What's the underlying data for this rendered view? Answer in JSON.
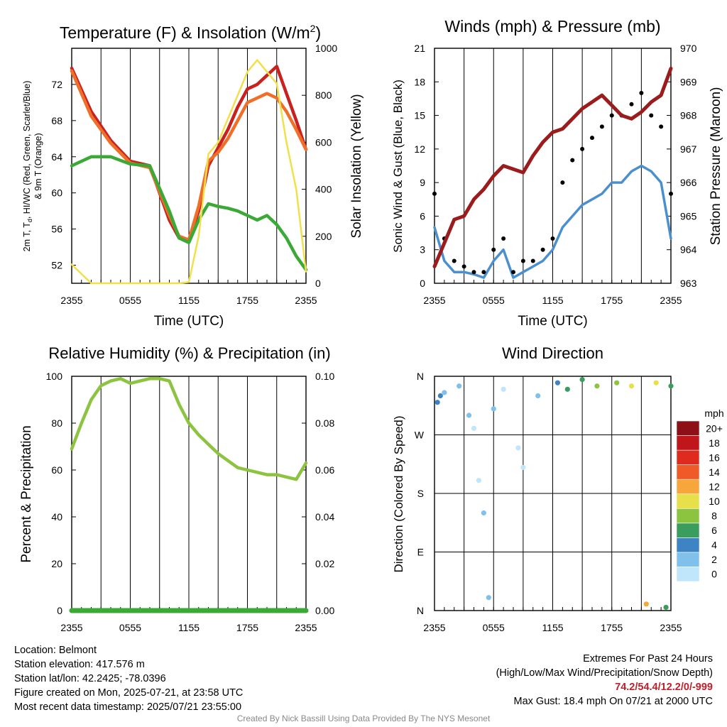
{
  "chart_data": [
    {
      "type": "line",
      "title": "Temperature (F) & Insolation (W/m²)",
      "title_main": "Temperature (F) & Insolation (W/m",
      "title_sup": "2",
      "title_end": ")",
      "xlabel": "Time (UTC)",
      "ylabel_lines": [
        "2m T, T",
        "d",
        ", HI/WC (Red, Green, Scarlet/Blue)",
        "& 9m T (Orange)"
      ],
      "ylabel_right": "Solar Insolation (Yellow)",
      "x_ticks": [
        "2355",
        "0555",
        "1155",
        "1755",
        "2355"
      ],
      "ylim": [
        50,
        76
      ],
      "yticks": [
        52,
        56,
        60,
        64,
        68,
        72
      ],
      "ylim_right": [
        0,
        1000
      ],
      "yticks_right": [
        0,
        200,
        400,
        600,
        800,
        1000
      ],
      "x_hours": [
        0,
        2,
        4,
        6,
        8,
        10,
        11,
        12,
        13,
        14,
        15,
        16,
        17,
        18,
        19,
        20,
        21,
        22,
        23,
        24
      ],
      "series": [
        {
          "color": "#c8211f",
          "values": [
            73.8,
            69,
            65.8,
            63.5,
            63,
            57,
            55,
            54.6,
            58,
            63,
            65,
            67,
            69.5,
            71.5,
            72,
            73,
            74,
            71,
            68,
            64.8
          ]
        },
        {
          "color": "#ef6f28",
          "values": [
            73.5,
            68.5,
            65.5,
            63.3,
            62.8,
            57.5,
            55.2,
            54.8,
            58.5,
            63.5,
            64.5,
            66,
            68,
            70,
            70.5,
            71,
            70.5,
            69,
            67,
            64.8
          ]
        },
        {
          "color": "#3aa935",
          "values": [
            63,
            64,
            64,
            63.2,
            63,
            58,
            55,
            54.5,
            57,
            58.8,
            58.5,
            58.3,
            58,
            57.5,
            57,
            57.5,
            56.5,
            55,
            53,
            51.5
          ]
        },
        {
          "color": "#f2e04a",
          "values": [
            80,
            0,
            0,
            0,
            0,
            0,
            0,
            5,
            200,
            550,
            600,
            700,
            800,
            900,
            950,
            900,
            850,
            600,
            400,
            50
          ]
        }
      ]
    },
    {
      "type": "line",
      "title": "Winds (mph) & Pressure (mb)",
      "xlabel": "Time (UTC)",
      "ylabel": "Sonic Wind & Gust (Blue, Black)",
      "ylabel_right": "Station Pressure (Maroon)",
      "x_ticks": [
        "2355",
        "0555",
        "1155",
        "1755",
        "2355"
      ],
      "ylim": [
        0,
        21
      ],
      "yticks": [
        0,
        3,
        6,
        9,
        12,
        15,
        18,
        21
      ],
      "ylim_right": [
        963,
        970
      ],
      "yticks_right": [
        963,
        964,
        965,
        966,
        967,
        968,
        969,
        970
      ],
      "x_hours": [
        0,
        1,
        2,
        3,
        4,
        5,
        6,
        7,
        8,
        9,
        10,
        11,
        12,
        13,
        14,
        15,
        16,
        17,
        18,
        19,
        20,
        21,
        22,
        23,
        24
      ],
      "series": [
        {
          "name": "Sonic Wind",
          "color": "#4a90cf",
          "values": [
            5,
            2,
            1,
            1,
            0.8,
            0.5,
            2,
            3,
            0.5,
            1,
            1.5,
            2,
            3,
            5,
            6,
            7,
            7.5,
            8,
            9,
            9,
            10,
            10.5,
            10,
            9,
            4
          ]
        },
        {
          "name": "Gust",
          "color": "#000000",
          "values": [
            8,
            4,
            2,
            1.5,
            1,
            1,
            3,
            4,
            1,
            2,
            2,
            3,
            4,
            9,
            11,
            12,
            13,
            14,
            15,
            15,
            16,
            17,
            15,
            14,
            8
          ]
        },
        {
          "name": "Station Pressure",
          "color": "#9b1c1c",
          "values": [
            963.5,
            964.2,
            964.9,
            965.0,
            965.5,
            965.8,
            966.2,
            966.5,
            966.4,
            966.3,
            966.8,
            967.2,
            967.5,
            967.6,
            967.9,
            968.2,
            968.4,
            968.6,
            968.3,
            968.0,
            967.9,
            968.1,
            968.4,
            968.6,
            969.4
          ]
        }
      ]
    },
    {
      "type": "line",
      "title": "Relative Humidity (%) & Precipitation (in)",
      "ylabel": "Percent & Precipitation",
      "x_ticks": [
        "2355",
        "0555",
        "1155",
        "1755",
        "2355"
      ],
      "ylim": [
        0,
        100
      ],
      "yticks": [
        0,
        20,
        40,
        60,
        80,
        100
      ],
      "ylim_right": [
        0,
        0.1
      ],
      "yticks_right": [
        "0.00",
        "0.02",
        "0.04",
        "0.06",
        "0.08",
        "0.10"
      ],
      "x_hours": [
        0,
        1,
        2,
        3,
        4,
        5,
        6,
        7,
        8,
        9,
        10,
        11,
        12,
        13,
        14,
        15,
        16,
        17,
        18,
        19,
        20,
        21,
        22,
        23,
        24
      ],
      "series": [
        {
          "name": "Relative Humidity",
          "color": "#8cc43f",
          "values": [
            69,
            80,
            90,
            96,
            98,
            99,
            97,
            98,
            99,
            99,
            98,
            88,
            80,
            75,
            71,
            67,
            64,
            61,
            60,
            59,
            58,
            58,
            57,
            56,
            63
          ]
        },
        {
          "name": "Precipitation",
          "color": "#3aa935",
          "values": [
            0,
            0,
            0,
            0,
            0,
            0,
            0,
            0,
            0,
            0,
            0,
            0,
            0,
            0,
            0,
            0,
            0,
            0,
            0,
            0,
            0,
            0,
            0,
            0,
            0
          ]
        }
      ]
    },
    {
      "type": "scatter",
      "title": "Wind Direction",
      "ylabel": "Direction (Colored By Speed)",
      "x_ticks": [
        "2355",
        "0555",
        "1155",
        "1755",
        "2355"
      ],
      "y_ticks": [
        "N",
        "E",
        "S",
        "W",
        "N"
      ],
      "ylim": [
        0,
        360
      ],
      "colorbar_title": "mph",
      "colorbar_labels": [
        "0",
        "2",
        "4",
        "6",
        "8",
        "10",
        "12",
        "14",
        "16",
        "18",
        "20+"
      ],
      "colorbar_colors": [
        "#bfe6fb",
        "#7fc1eb",
        "#3e84c4",
        "#3a9d5e",
        "#8cc43f",
        "#e8e04a",
        "#f7a63b",
        "#ef5a28",
        "#df2a1e",
        "#c0151a",
        "#8e1016"
      ],
      "points": [
        {
          "x": 0.3,
          "y": 320,
          "s": 4
        },
        {
          "x": 0.6,
          "y": 330,
          "s": 3
        },
        {
          "x": 1.0,
          "y": 335,
          "s": 2
        },
        {
          "x": 2.5,
          "y": 345,
          "s": 1
        },
        {
          "x": 3.5,
          "y": 300,
          "s": 1
        },
        {
          "x": 4.0,
          "y": 280,
          "s": 0
        },
        {
          "x": 4.5,
          "y": 200,
          "s": 0
        },
        {
          "x": 5.0,
          "y": 150,
          "s": 1
        },
        {
          "x": 5.5,
          "y": 20,
          "s": 2
        },
        {
          "x": 6.0,
          "y": 310,
          "s": 1
        },
        {
          "x": 7.0,
          "y": 340,
          "s": 0
        },
        {
          "x": 8.5,
          "y": 250,
          "s": 0
        },
        {
          "x": 9.0,
          "y": 220,
          "s": 0
        },
        {
          "x": 10.5,
          "y": 330,
          "s": 2
        },
        {
          "x": 12.5,
          "y": 350,
          "s": 4
        },
        {
          "x": 13.5,
          "y": 340,
          "s": 5
        },
        {
          "x": 15.0,
          "y": 355,
          "s": 6
        },
        {
          "x": 16.5,
          "y": 345,
          "s": 7
        },
        {
          "x": 18.5,
          "y": 350,
          "s": 8
        },
        {
          "x": 20.0,
          "y": 345,
          "s": 10
        },
        {
          "x": 21.5,
          "y": 10,
          "s": 11
        },
        {
          "x": 22.5,
          "y": 350,
          "s": 9
        },
        {
          "x": 23.5,
          "y": 5,
          "s": 6
        },
        {
          "x": 24.0,
          "y": 345,
          "s": 5
        }
      ]
    }
  ],
  "info_left": {
    "location": "Location: Belmont",
    "elevation": "Station elevation: 417.576 m",
    "latlon": "Station lat/lon: 42.2425; -78.0396",
    "created": "Figure created on Mon, 2025-07-21, at 23:58 UTC",
    "recent": "Most recent data timestamp: 2025/07/21 23:55:00"
  },
  "info_right": {
    "heading": "Extremes For Past 24 Hours",
    "subheading": "(High/Low/Max Wind/Precipitation/Snow Depth)",
    "values": "74.2/54.4/12.2/0/-999",
    "gust": "Max Gust: 18.4 mph On 07/21 at 2000 UTC"
  },
  "credit": "Created By Nick Bassill Using Data Provided By The NYS Mesonet"
}
